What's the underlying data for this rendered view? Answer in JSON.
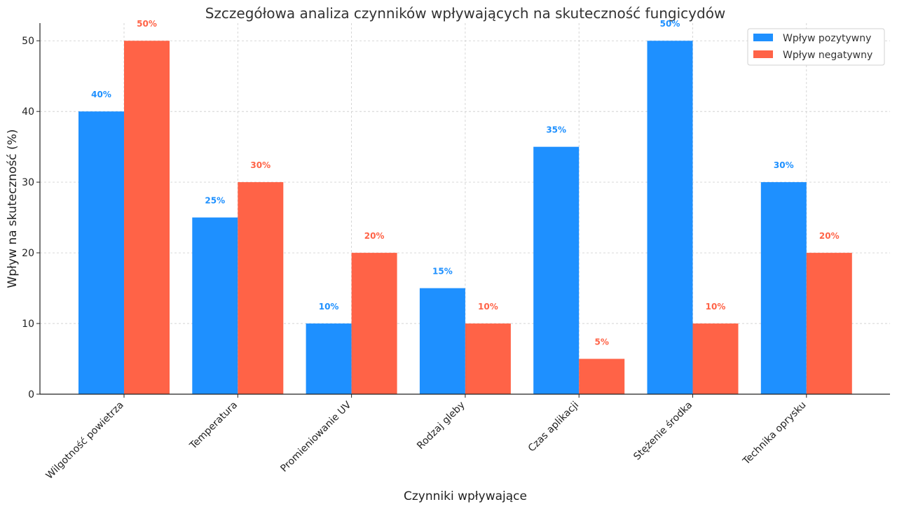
{
  "chart_data": {
    "type": "bar",
    "title": "Szczegółowa analiza czynników wpływających na skuteczność fungicydów",
    "xlabel": "Czynniki wpływające",
    "ylabel": "Wpływ na skuteczność (%)",
    "categories": [
      "Wilgotność powietrza",
      "Temperatura",
      "Promieniowanie UV",
      "Rodzaj gleby",
      "Czas aplikacji",
      "Stężenie środka",
      "Technika oprysku"
    ],
    "series": [
      {
        "name": "Wpływ pozytywny",
        "values": [
          40,
          25,
          10,
          15,
          35,
          50,
          30
        ],
        "color": "#1e90ff",
        "labels": [
          "40%",
          "25%",
          "10%",
          "15%",
          "35%",
          "50%",
          "30%"
        ]
      },
      {
        "name": "Wpływ negatywny",
        "values": [
          50,
          30,
          20,
          10,
          5,
          10,
          20
        ],
        "color": "#ff6347",
        "labels": [
          "50%",
          "30%",
          "20%",
          "10%",
          "5%",
          "10%",
          "20%"
        ]
      }
    ],
    "ylim": [
      0,
      52.5
    ],
    "yticks": [
      0,
      10,
      20,
      30,
      40,
      50
    ],
    "ytick_labels": [
      "0",
      "10",
      "20",
      "30",
      "40",
      "50"
    ],
    "grid": true,
    "legend_position": "top-right"
  }
}
